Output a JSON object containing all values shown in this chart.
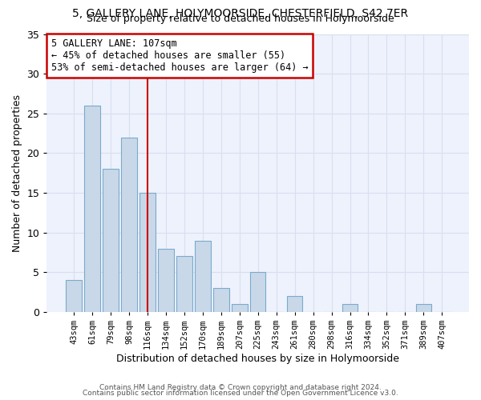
{
  "title1": "5, GALLERY LANE, HOLYMOORSIDE, CHESTERFIELD, S42 7ER",
  "title2": "Size of property relative to detached houses in Holymoorside",
  "xlabel": "Distribution of detached houses by size in Holymoorside",
  "ylabel": "Number of detached properties",
  "footer1": "Contains HM Land Registry data © Crown copyright and database right 2024.",
  "footer2": "Contains public sector information licensed under the Open Government Licence v3.0.",
  "annotation_line1": "5 GALLERY LANE: 107sqm",
  "annotation_line2": "← 45% of detached houses are smaller (55)",
  "annotation_line3": "53% of semi-detached houses are larger (64) →",
  "bar_labels": [
    "43sqm",
    "61sqm",
    "79sqm",
    "98sqm",
    "116sqm",
    "134sqm",
    "152sqm",
    "170sqm",
    "189sqm",
    "207sqm",
    "225sqm",
    "243sqm",
    "261sqm",
    "280sqm",
    "298sqm",
    "316sqm",
    "334sqm",
    "352sqm",
    "371sqm",
    "389sqm",
    "407sqm"
  ],
  "bar_values": [
    4,
    26,
    18,
    22,
    15,
    8,
    7,
    9,
    3,
    1,
    5,
    0,
    2,
    0,
    0,
    1,
    0,
    0,
    0,
    1,
    0
  ],
  "bar_color": "#c8d8e8",
  "bar_edge_color": "#7aaacc",
  "red_line_x": 4.0,
  "ylim": [
    0,
    35
  ],
  "yticks": [
    0,
    5,
    10,
    15,
    20,
    25,
    30,
    35
  ],
  "grid_color": "#d8dff0",
  "bg_color": "#eef2fc",
  "annotation_border_color": "#cc0000",
  "title_fontsize": 10,
  "subtitle_fontsize": 9
}
